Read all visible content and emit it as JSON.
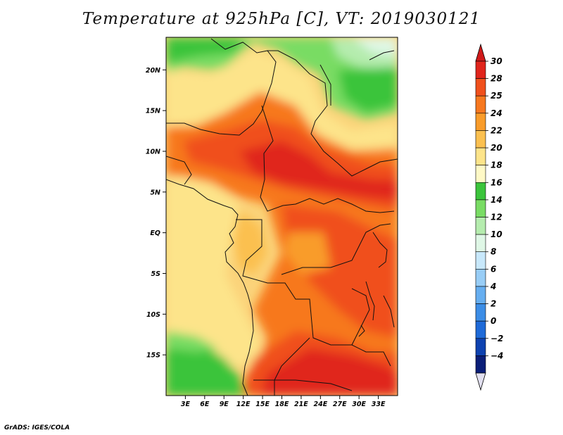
{
  "title": "Temperature at 925hPa [C], VT: 2019030121",
  "credit": "GrADS: IGES/COLA",
  "map": {
    "lon_range": [
      0,
      36
    ],
    "lat_range": [
      -20,
      24
    ],
    "lat_ticks": [
      {
        "value": 20,
        "label": "20N"
      },
      {
        "value": 15,
        "label": "15N"
      },
      {
        "value": 10,
        "label": "10N"
      },
      {
        "value": 5,
        "label": "5N"
      },
      {
        "value": 0,
        "label": "EQ"
      },
      {
        "value": -5,
        "label": "5S"
      },
      {
        "value": -10,
        "label": "10S"
      },
      {
        "value": -15,
        "label": "15S"
      }
    ],
    "lon_ticks": [
      {
        "value": 3,
        "label": "3E"
      },
      {
        "value": 6,
        "label": "6E"
      },
      {
        "value": 9,
        "label": "9E"
      },
      {
        "value": 12,
        "label": "12E"
      },
      {
        "value": 15,
        "label": "15E"
      },
      {
        "value": 18,
        "label": "18E"
      },
      {
        "value": 21,
        "label": "21E"
      },
      {
        "value": 24,
        "label": "24E"
      },
      {
        "value": 27,
        "label": "27E"
      },
      {
        "value": 30,
        "label": "30E"
      },
      {
        "value": 33,
        "label": "33E"
      }
    ]
  },
  "colorbar": {
    "levels": [
      {
        "label": "30",
        "color": "#e0251c"
      },
      {
        "label": "28",
        "color": "#f0501c"
      },
      {
        "label": "25",
        "color": "#f7781f"
      },
      {
        "label": "24",
        "color": "#f99c2a"
      },
      {
        "label": "22",
        "color": "#fbc050"
      },
      {
        "label": "20",
        "color": "#fde48a"
      },
      {
        "label": "18",
        "color": "#fff9c6"
      },
      {
        "label": "16",
        "color": "#3bc43b"
      },
      {
        "label": "14",
        "color": "#79dc64"
      },
      {
        "label": "12",
        "color": "#b5ecae"
      },
      {
        "label": "10",
        "color": "#dff7e6"
      },
      {
        "label": "8",
        "color": "#c8e8fb"
      },
      {
        "label": "6",
        "color": "#98cdf6"
      },
      {
        "label": "4",
        "color": "#66aef0"
      },
      {
        "label": "2",
        "color": "#3c8de6"
      },
      {
        "label": "0",
        "color": "#1e6ad8"
      },
      {
        "label": "−2",
        "color": "#0e42b0"
      },
      {
        "label": "−4",
        "color": "#0a1e78"
      }
    ],
    "top_arrow_color": "#d01a1a",
    "bottom_arrow_color": "#e2e0f0"
  }
}
